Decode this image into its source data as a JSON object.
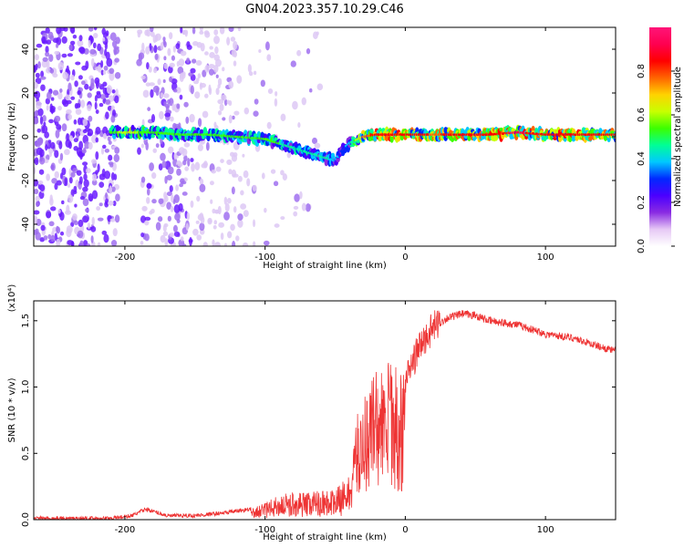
{
  "title": "GN04.2023.357.10.29.C46",
  "chart_data": [
    {
      "type": "heatmap",
      "xlabel": "Height of straight line (km)",
      "ylabel": "Frequency (Hz)",
      "xlim": [
        -265,
        150
      ],
      "ylim": [
        -50,
        50
      ],
      "xticks": [
        -200,
        -100,
        0,
        100
      ],
      "yticks": [
        -40,
        -20,
        0,
        20,
        40
      ],
      "colorbar": {
        "label": "Normalized spectral amplitude",
        "range": [
          0,
          1
        ],
        "ticks": [
          "0.0",
          "0.2",
          "0.4",
          "0.6",
          "0.8"
        ],
        "colors": [
          "#ffffff",
          "#e6c8f5",
          "#8a2be2",
          "#4b00ff",
          "#0028ff",
          "#00c8ff",
          "#00ff96",
          "#3cff00",
          "#c8ff00",
          "#ffd200",
          "#ff6400",
          "#ff0000",
          "#ff0050",
          "#ff1478"
        ]
      },
      "ridge": {
        "x": [
          -210,
          -200,
          -180,
          -160,
          -140,
          -120,
          -100,
          -90,
          -80,
          -70,
          -60,
          -50,
          -45,
          -40,
          -30,
          -20,
          0,
          20,
          60,
          80,
          100,
          150
        ],
        "freq": [
          2,
          2,
          2,
          1,
          1,
          0,
          -1,
          -3,
          -5,
          -7,
          -9,
          -11,
          -6,
          -3,
          0,
          1,
          1,
          1,
          1,
          2,
          1,
          1
        ],
        "amplitude": [
          0.55,
          0.6,
          0.55,
          0.5,
          0.5,
          0.5,
          0.55,
          0.5,
          0.45,
          0.45,
          0.45,
          0.4,
          0.3,
          0.4,
          0.75,
          0.85,
          0.85,
          0.8,
          0.85,
          0.9,
          0.85,
          0.85
        ]
      }
    },
    {
      "type": "line",
      "xlabel": "Height of straight line (km)",
      "ylabel": "SNR (10 * v/v)",
      "scale_note": "(x10⁴)",
      "xlim": [
        -265,
        150
      ],
      "ylim": [
        0,
        1.65
      ],
      "xticks": [
        -200,
        -100,
        0,
        100
      ],
      "yticks": [
        "0.0",
        "0.5",
        "1.0",
        "1.5"
      ],
      "color": "#ee3333",
      "envelope": {
        "x": [
          -265,
          -240,
          -210,
          -195,
          -185,
          -170,
          -150,
          -130,
          -110,
          -100,
          -90,
          -80,
          -70,
          -60,
          -50,
          -40,
          -35,
          -30,
          -25,
          -20,
          -15,
          -10,
          -5,
          0,
          10,
          20,
          30,
          40,
          50,
          60,
          80,
          100,
          120,
          140,
          150
        ],
        "y": [
          0.01,
          0.01,
          0.01,
          0.03,
          0.08,
          0.03,
          0.03,
          0.05,
          0.08,
          0.12,
          0.18,
          0.2,
          0.2,
          0.22,
          0.22,
          0.3,
          0.7,
          0.85,
          1.0,
          1.1,
          1.0,
          1.2,
          1.0,
          1.05,
          1.3,
          1.45,
          1.52,
          1.55,
          1.54,
          1.5,
          1.47,
          1.4,
          1.37,
          1.3,
          1.27
        ]
      }
    }
  ]
}
